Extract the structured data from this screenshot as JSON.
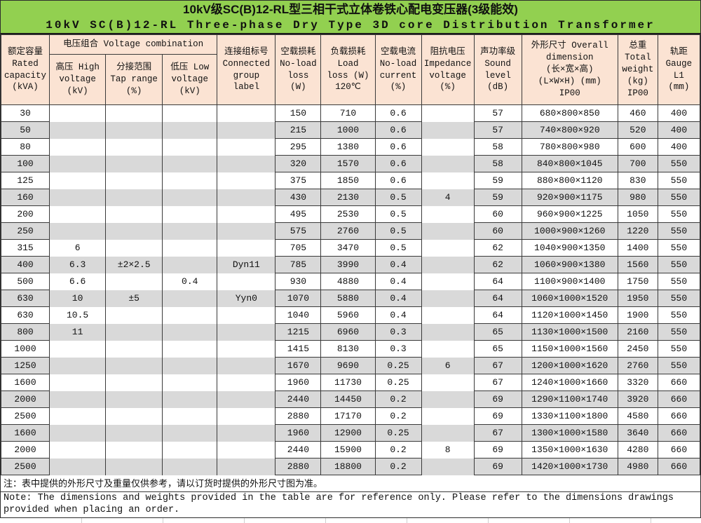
{
  "title": {
    "line1_zh": "10kV级SC(B)12-RL型三相干式立体卷铁心配电变压器(3级能效)",
    "line2_en": "10kV SC(B)12-RL Three-phase Dry Type 3D core Distribution Transformer"
  },
  "colors": {
    "title_bg": "#92d050",
    "header_bg": "#fbe3d3",
    "row_stripe": "#d9d9d9",
    "border": "#3a3a3a"
  },
  "table": {
    "header": {
      "capacity": [
        "额定容量",
        "Rated",
        "capacity",
        "(kVA)"
      ],
      "voltage_group": "电压组合 Voltage combination",
      "hv": [
        "高压 High",
        "voltage",
        "(kV)"
      ],
      "tap": [
        "分接范围",
        "Tap range",
        "(%)"
      ],
      "lv": [
        "低压 Low",
        "voltage",
        "(kV)"
      ],
      "group": [
        "连接组标号",
        "Connected",
        "group",
        "label"
      ],
      "no_load_loss": [
        "空载损耗",
        "No-load",
        "loss",
        "(W)"
      ],
      "load_loss": [
        "负载损耗",
        "Load",
        "loss (W)",
        "120℃"
      ],
      "no_load_current": [
        "空载电流",
        "No-load",
        "current",
        "(%)"
      ],
      "impedance": [
        "阻抗电压",
        "Impedance",
        "voltage",
        "(%)"
      ],
      "sound": [
        "声功率级",
        "Sound",
        "level",
        "(dB)"
      ],
      "dimension": [
        "外形尺寸 Overall",
        "dimension",
        "(长×宽×高)",
        "(L×W×H) (mm)",
        "IP00"
      ],
      "weight": [
        "总重",
        "Total",
        "weight",
        "(kg)",
        "IP00"
      ],
      "gauge": [
        "轨距",
        "Gauge",
        "L1",
        "(mm)"
      ]
    },
    "column_keys": [
      "capacity",
      "hv",
      "tap",
      "lv",
      "group",
      "no-load-loss",
      "load-loss",
      "no-load-current",
      "impedance",
      "sound",
      "dimension",
      "weight",
      "gauge"
    ],
    "rows": [
      [
        "30",
        "",
        "",
        "",
        "",
        "150",
        "710",
        "0.6",
        "",
        "57",
        "680×800×850",
        "460",
        "400"
      ],
      [
        "50",
        "",
        "",
        "",
        "",
        "215",
        "1000",
        "0.6",
        "",
        "57",
        "740×800×920",
        "520",
        "400"
      ],
      [
        "80",
        "",
        "",
        "",
        "",
        "295",
        "1380",
        "0.6",
        "",
        "58",
        "780×800×980",
        "600",
        "400"
      ],
      [
        "100",
        "",
        "",
        "",
        "",
        "320",
        "1570",
        "0.6",
        "",
        "58",
        "840×800×1045",
        "700",
        "550"
      ],
      [
        "125",
        "",
        "",
        "",
        "",
        "375",
        "1850",
        "0.6",
        "",
        "59",
        "880×800×1120",
        "830",
        "550"
      ],
      [
        "160",
        "",
        "",
        "",
        "",
        "430",
        "2130",
        "0.5",
        "4",
        "59",
        "920×900×1175",
        "980",
        "550"
      ],
      [
        "200",
        "",
        "",
        "",
        "",
        "495",
        "2530",
        "0.5",
        "",
        "60",
        "960×900×1225",
        "1050",
        "550"
      ],
      [
        "250",
        "",
        "",
        "",
        "",
        "575",
        "2760",
        "0.5",
        "",
        "60",
        "1000×900×1260",
        "1220",
        "550"
      ],
      [
        "315",
        "6",
        "",
        "",
        "",
        "705",
        "3470",
        "0.5",
        "",
        "62",
        "1040×900×1350",
        "1400",
        "550"
      ],
      [
        "400",
        "6.3",
        "±2×2.5",
        "",
        "Dyn11",
        "785",
        "3990",
        "0.4",
        "",
        "62",
        "1060×900×1380",
        "1560",
        "550"
      ],
      [
        "500",
        "6.6",
        "",
        "0.4",
        "",
        "930",
        "4880",
        "0.4",
        "",
        "64",
        "1100×900×1400",
        "1750",
        "550"
      ],
      [
        "630",
        "10",
        "±5",
        "",
        "Yyn0",
        "1070",
        "5880",
        "0.4",
        "",
        "64",
        "1060×1000×1520",
        "1950",
        "550"
      ],
      [
        "630",
        "10.5",
        "",
        "",
        "",
        "1040",
        "5960",
        "0.4",
        "",
        "64",
        "1120×1000×1450",
        "1900",
        "550"
      ],
      [
        "800",
        "11",
        "",
        "",
        "",
        "1215",
        "6960",
        "0.3",
        "",
        "65",
        "1130×1000×1500",
        "2160",
        "550"
      ],
      [
        "1000",
        "",
        "",
        "",
        "",
        "1415",
        "8130",
        "0.3",
        "",
        "65",
        "1150×1000×1560",
        "2450",
        "550"
      ],
      [
        "1250",
        "",
        "",
        "",
        "",
        "1670",
        "9690",
        "0.25",
        "6",
        "67",
        "1200×1000×1620",
        "2760",
        "550"
      ],
      [
        "1600",
        "",
        "",
        "",
        "",
        "1960",
        "11730",
        "0.25",
        "",
        "67",
        "1240×1000×1660",
        "3320",
        "660"
      ],
      [
        "2000",
        "",
        "",
        "",
        "",
        "2440",
        "14450",
        "0.2",
        "",
        "69",
        "1290×1100×1740",
        "3920",
        "660"
      ],
      [
        "2500",
        "",
        "",
        "",
        "",
        "2880",
        "17170",
        "0.2",
        "",
        "69",
        "1330×1100×1800",
        "4580",
        "660"
      ],
      [
        "1600",
        "",
        "",
        "",
        "",
        "1960",
        "12900",
        "0.25",
        "",
        "67",
        "1300×1000×1580",
        "3640",
        "660"
      ],
      [
        "2000",
        "",
        "",
        "",
        "",
        "2440",
        "15900",
        "0.2",
        "8",
        "69",
        "1350×1000×1630",
        "4280",
        "660"
      ],
      [
        "2500",
        "",
        "",
        "",
        "",
        "2880",
        "18800",
        "0.2",
        "",
        "69",
        "1420×1000×1730",
        "4980",
        "660"
      ]
    ]
  },
  "notes": {
    "zh": "注：表中提供的外形尺寸及重量仅供参考，请以订货时提供的外形尺寸图为准。",
    "en": "Note: The dimensions and weights provided in the table are for reference only. Please refer to the dimensions drawings provided when placing an order."
  }
}
